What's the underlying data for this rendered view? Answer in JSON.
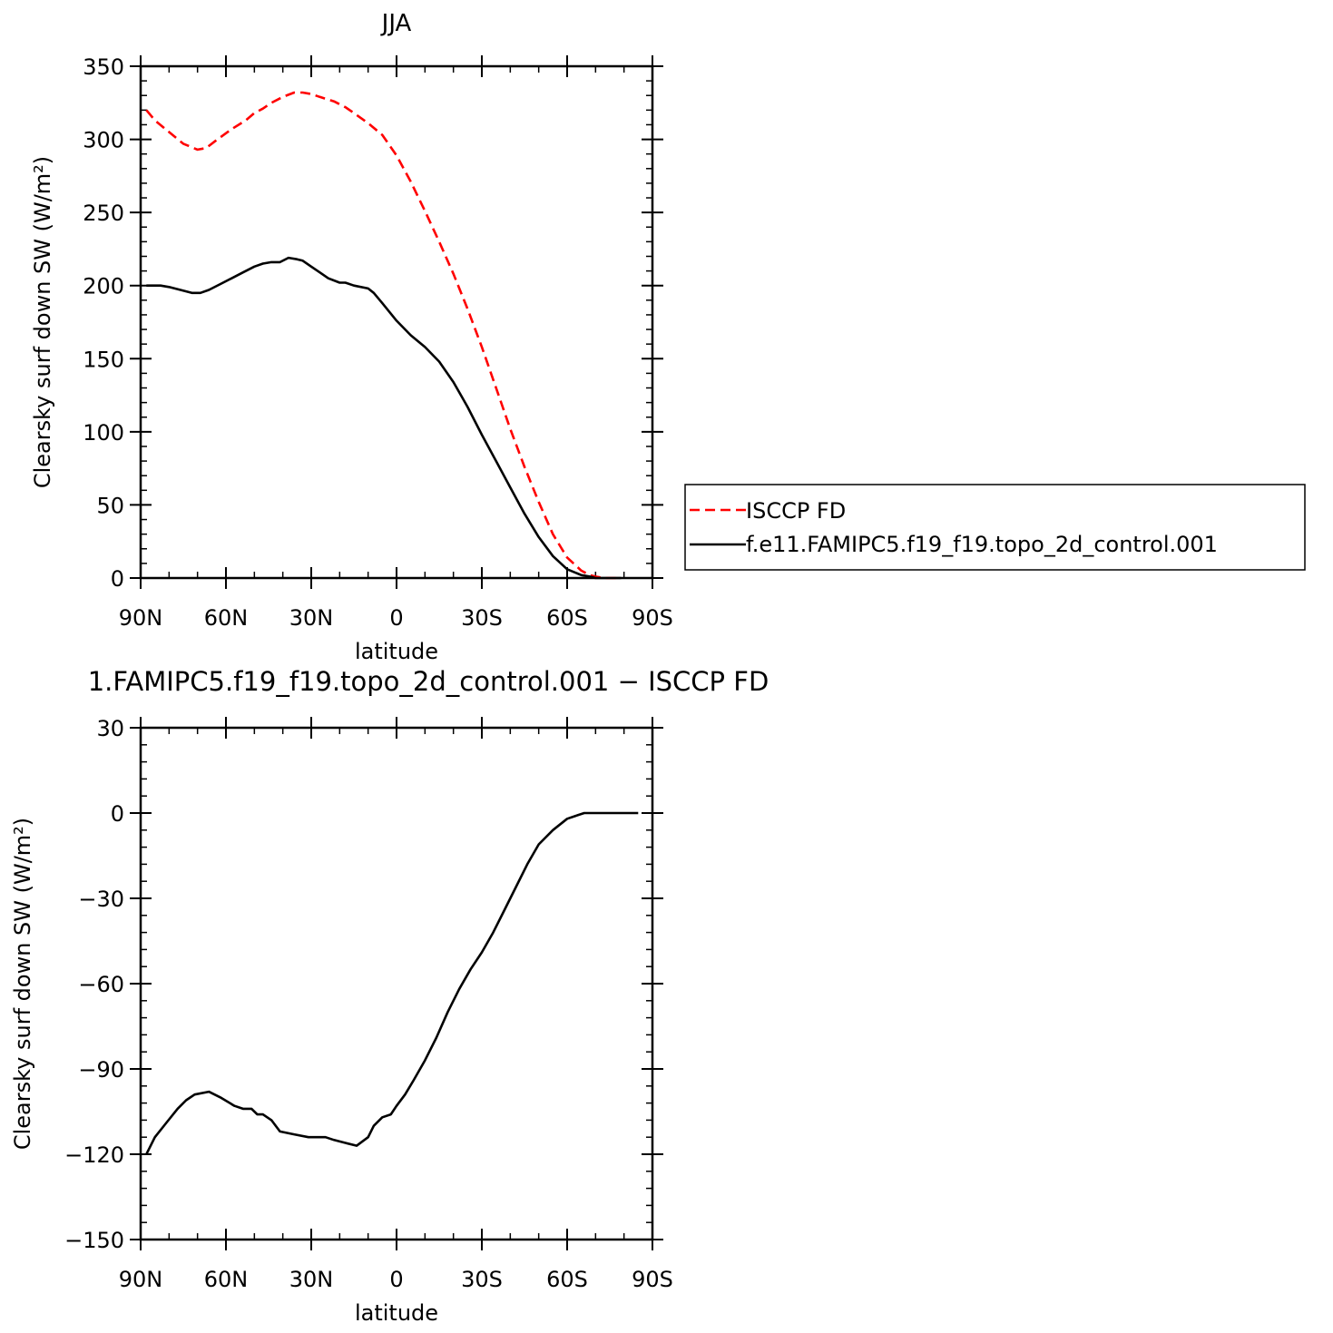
{
  "chart_data": [
    {
      "type": "line",
      "title": "JJA",
      "xlabel": "latitude",
      "ylabel": "Clearsky surf down SW (W/m²)",
      "xlim": [
        90,
        -90
      ],
      "ylim": [
        0,
        350
      ],
      "xticks": [
        90,
        60,
        30,
        0,
        -30,
        -60,
        -90
      ],
      "xtick_labels": [
        "90N",
        "60N",
        "30N",
        "0",
        "30S",
        "60S",
        "90S"
      ],
      "yticks": [
        0,
        50,
        100,
        150,
        200,
        250,
        300,
        350
      ],
      "ytick_labels": [
        "0",
        "50",
        "100",
        "150",
        "200",
        "250",
        "300",
        "350"
      ],
      "grid": false,
      "legend_position": "right",
      "series": [
        {
          "name": "ISCCP FD",
          "color": "#ff0000",
          "dash": "dashed",
          "x": [
            88,
            85,
            80,
            75,
            70,
            67,
            63,
            58,
            53,
            50,
            47,
            44,
            40,
            36,
            33,
            30,
            27,
            22,
            18,
            15,
            10,
            5,
            0,
            -5,
            -10,
            -15,
            -20,
            -25,
            -30,
            -35,
            -40,
            -45,
            -50,
            -55,
            -60,
            -65,
            -68,
            -70,
            -73,
            -76,
            -79
          ],
          "y": [
            320,
            313,
            305,
            297,
            293,
            294,
            300,
            307,
            313,
            318,
            321,
            325,
            329,
            332,
            332,
            331,
            329,
            326,
            322,
            318,
            311,
            303,
            289,
            271,
            251,
            230,
            208,
            184,
            158,
            130,
            102,
            76,
            52,
            30,
            14,
            5,
            2,
            1,
            0,
            0,
            0
          ]
        },
        {
          "name": "f.e11.FAMIPC5.f19_f19.topo_2d_control.001",
          "color": "#000000",
          "dash": "solid",
          "x": [
            88,
            83,
            80,
            76,
            72,
            69,
            66,
            62,
            58,
            54,
            50,
            47,
            44,
            41,
            38,
            35,
            33,
            30,
            27,
            24,
            20,
            18,
            15,
            10,
            8,
            5,
            0,
            -5,
            -10,
            -15,
            -20,
            -25,
            -30,
            -35,
            -40,
            -45,
            -50,
            -55,
            -60,
            -65,
            -68,
            -70,
            -73,
            -76,
            -79
          ],
          "y": [
            200,
            200,
            199,
            197,
            195,
            195,
            197,
            201,
            205,
            209,
            213,
            215,
            216,
            216,
            219,
            218,
            217,
            213,
            209,
            205,
            202,
            202,
            200,
            198,
            195,
            188,
            176,
            166,
            158,
            148,
            134,
            117,
            98,
            80,
            62,
            44,
            28,
            15,
            6,
            2,
            1,
            0,
            0,
            0,
            0
          ]
        }
      ]
    },
    {
      "type": "line",
      "title": "1.FAMIPC5.f19_f19.topo_2d_control.001 − ISCCP FD",
      "xlabel": "latitude",
      "ylabel": "Clearsky surf down SW (W/m²)",
      "xlim": [
        90,
        -90
      ],
      "ylim": [
        -150,
        30
      ],
      "xticks": [
        90,
        60,
        30,
        0,
        -30,
        -60,
        -90
      ],
      "xtick_labels": [
        "90N",
        "60N",
        "30N",
        "0",
        "30S",
        "60S",
        "90S"
      ],
      "yticks": [
        -150,
        -120,
        -90,
        -60,
        -30,
        0,
        30
      ],
      "ytick_labels": [
        "−150",
        "−120",
        "−90",
        "−60",
        "−30",
        "0",
        "30"
      ],
      "grid": false,
      "series": [
        {
          "color": "#000000",
          "dash": "solid",
          "x": [
            88,
            85,
            81,
            77,
            74,
            71,
            66,
            62,
            57,
            54,
            51,
            49,
            47,
            44,
            41,
            36,
            31,
            28,
            25,
            22,
            18,
            14,
            10,
            8,
            5,
            2,
            0,
            -3,
            -6,
            -10,
            -14,
            -18,
            -22,
            -26,
            -30,
            -34,
            -38,
            -42,
            -46,
            -50,
            -55,
            -60,
            -63,
            -66,
            -69,
            -72,
            -77,
            -85
          ],
          "y": [
            -120,
            -114,
            -109,
            -104,
            -101,
            -99,
            -98,
            -100,
            -103,
            -104,
            -104,
            -106,
            -106,
            -108,
            -112,
            -113,
            -114,
            -114,
            -114,
            -115,
            -116,
            -117,
            -114,
            -110,
            -107,
            -106,
            -103,
            -99,
            -94,
            -87,
            -79,
            -70,
            -62,
            -55,
            -49,
            -42,
            -34,
            -26,
            -18,
            -11,
            -6,
            -2,
            -1,
            0,
            0,
            0,
            0,
            0
          ]
        }
      ]
    }
  ]
}
